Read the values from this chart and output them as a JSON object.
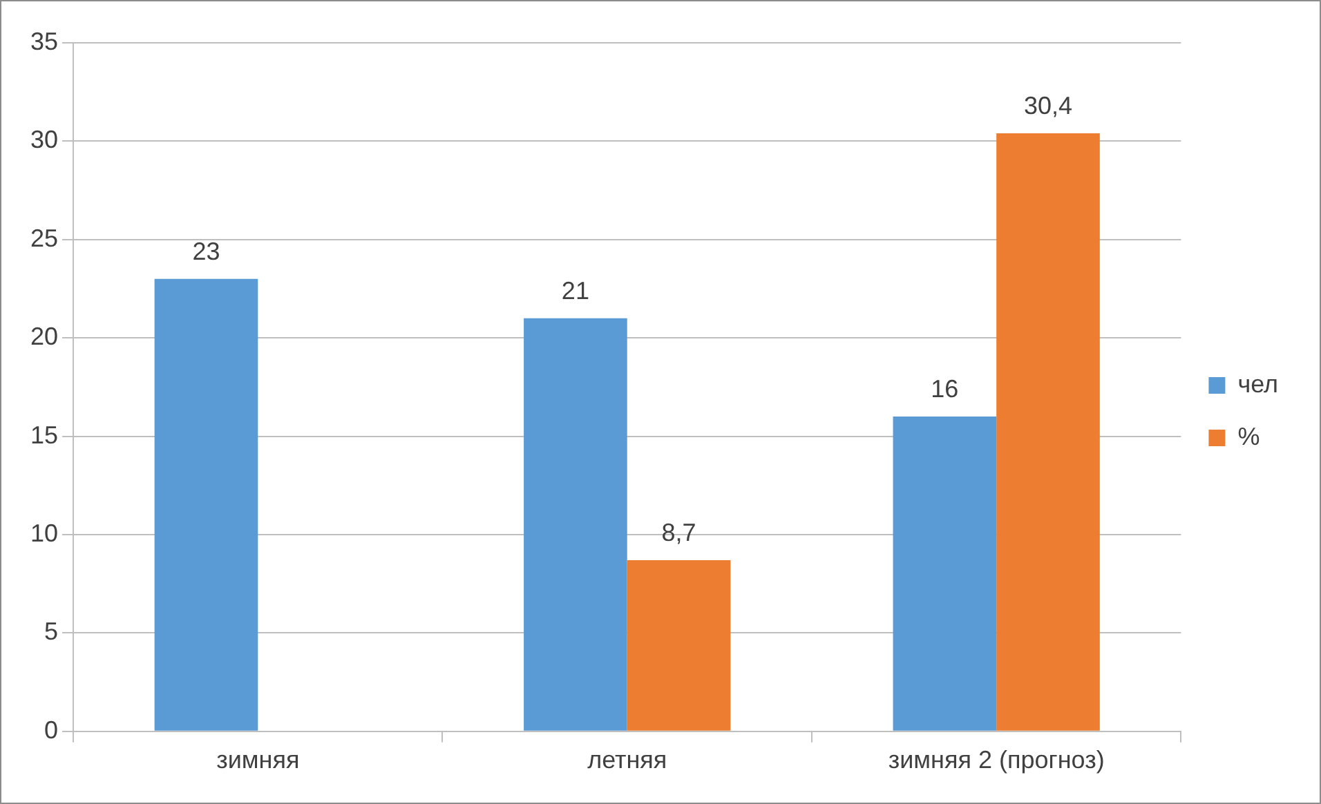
{
  "chart_data": {
    "type": "bar",
    "categories": [
      "зимняя",
      "летняя",
      "зимняя 2 (прогноз)"
    ],
    "series": [
      {
        "name": "чел",
        "color": "#5b9bd5",
        "values": [
          23,
          21,
          16
        ],
        "value_labels": [
          "23",
          "21",
          "16"
        ]
      },
      {
        "name": "%",
        "color": "#ed7d31",
        "values": [
          null,
          8.7,
          30.4
        ],
        "value_labels": [
          null,
          "8,7",
          "30,4"
        ]
      }
    ],
    "ylim": [
      0,
      35
    ],
    "yticks": [
      0,
      5,
      10,
      15,
      20,
      25,
      30,
      35
    ],
    "grid": "y",
    "legend": "right"
  }
}
